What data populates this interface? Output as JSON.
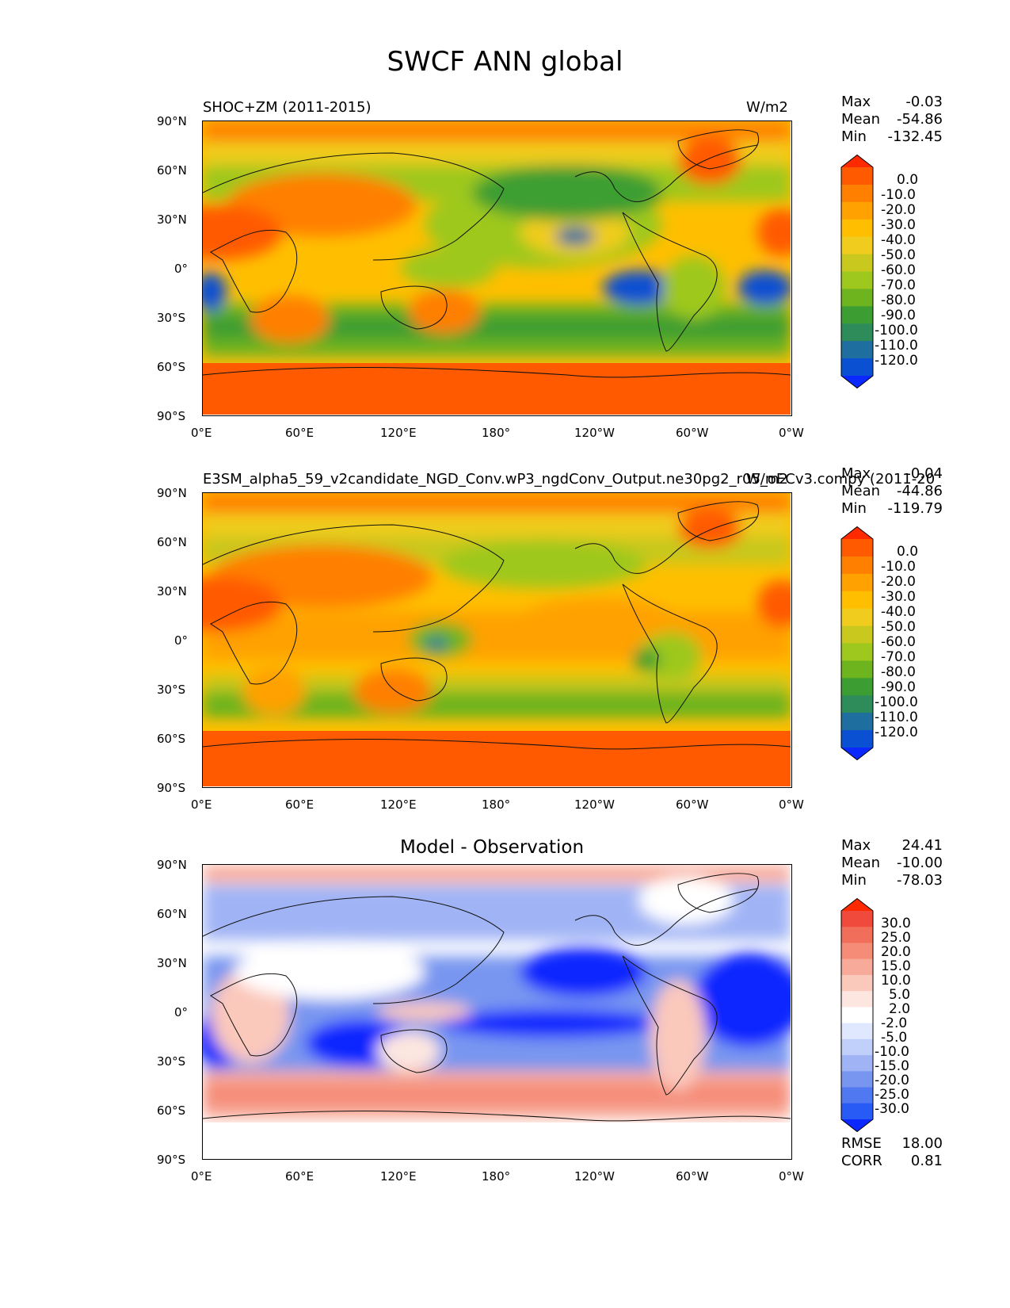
{
  "figure": {
    "title": "SWCF ANN global"
  },
  "lat_ticks": [
    "90°N",
    "60°N",
    "30°N",
    "0°",
    "30°S",
    "60°S",
    "90°S"
  ],
  "lon_ticks": [
    "0°E",
    "60°E",
    "120°E",
    "180°",
    "120°W",
    "60°W",
    "0°W"
  ],
  "panels": [
    {
      "id": "test",
      "title_left": "SHOC+ZM (2011-2015)",
      "units": "W/m2",
      "stats": {
        "max_label": "Max",
        "max": "-0.03",
        "mean_label": "Mean",
        "mean": "-54.86",
        "min_label": "Min",
        "min": "-132.45"
      },
      "colorbar": {
        "labels": [
          "0.0",
          "-10.0",
          "-20.0",
          "-30.0",
          "-40.0",
          "-50.0",
          "-60.0",
          "-70.0",
          "-80.0",
          "-90.0",
          "-100.0",
          "-110.0",
          "-120.0"
        ],
        "colors": [
          "#ff2a00",
          "#ff5a00",
          "#ff7f00",
          "#ffa100",
          "#ffbf00",
          "#f0cc1e",
          "#c8c81e",
          "#9ec81e",
          "#6eb41e",
          "#3c9e32",
          "#2e8c5a",
          "#1e6ea0",
          "#0a50d2",
          "#0a28ff"
        ]
      }
    },
    {
      "id": "ref",
      "title_left": "E3SM_alpha5_59_v2candidate_NGD_Conv.wP3_ngdConv_Output.ne30pg2_r05_oECv3.compy (2011-20",
      "units": "W/m2",
      "stats": {
        "max_label": "Max",
        "max": "-0.04",
        "mean_label": "Mean",
        "mean": "-44.86",
        "min_label": "Min",
        "min": "-119.79"
      },
      "colorbar": {
        "labels": [
          "0.0",
          "-10.0",
          "-20.0",
          "-30.0",
          "-40.0",
          "-50.0",
          "-60.0",
          "-70.0",
          "-80.0",
          "-90.0",
          "-100.0",
          "-110.0",
          "-120.0"
        ],
        "colors": [
          "#ff2a00",
          "#ff5a00",
          "#ff7f00",
          "#ffa100",
          "#ffbf00",
          "#f0cc1e",
          "#c8c81e",
          "#9ec81e",
          "#6eb41e",
          "#3c9e32",
          "#2e8c5a",
          "#1e6ea0",
          "#0a50d2",
          "#0a28ff"
        ]
      }
    },
    {
      "id": "diff",
      "title_center": "Model - Observation",
      "stats": {
        "max_label": "Max",
        "max": "24.41",
        "mean_label": "Mean",
        "mean": "-10.00",
        "min_label": "Min",
        "min": "-78.03"
      },
      "colorbar": {
        "labels": [
          "30.0",
          "25.0",
          "20.0",
          "15.0",
          "10.0",
          "5.0",
          "2.0",
          "-2.0",
          "-5.0",
          "-10.0",
          "-15.0",
          "-20.0",
          "-25.0",
          "-30.0"
        ],
        "colors": [
          "#ff2a00",
          "#f04a3c",
          "#f06e5a",
          "#f58c78",
          "#f8aa9a",
          "#fbc8bc",
          "#fde6e0",
          "#ffffff",
          "#e0e8ff",
          "#c0d0fa",
          "#a0b4f5",
          "#7896f0",
          "#5078f0",
          "#285af5",
          "#0a28ff"
        ]
      },
      "extra": {
        "rmse_label": "RMSE",
        "rmse": "18.00",
        "corr_label": "CORR",
        "corr": "0.81"
      }
    }
  ]
}
